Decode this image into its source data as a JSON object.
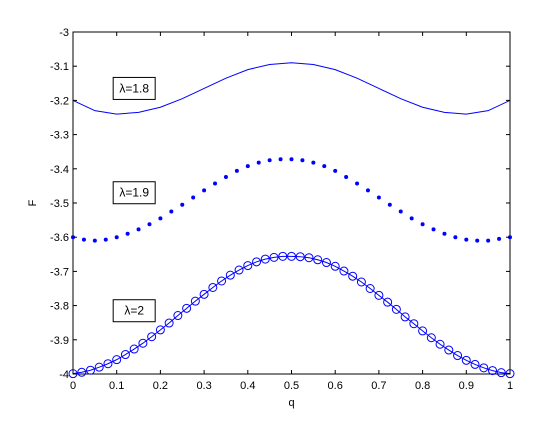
{
  "chart_data": {
    "type": "line",
    "title": "",
    "xlabel": "q",
    "ylabel": "F",
    "xlim": [
      0,
      1
    ],
    "ylim": [
      -4,
      -3
    ],
    "grid": false,
    "legend": "none",
    "x_ticks": [
      "0",
      "0.1",
      "0.2",
      "0.3",
      "0.4",
      "0.5",
      "0.6",
      "0.7",
      "0.8",
      "0.9",
      "1"
    ],
    "y_ticks": [
      "-3",
      "-3.1",
      "-3.2",
      "-3.3",
      "-3.4",
      "-3.5",
      "-3.6",
      "-3.7",
      "-3.8",
      "-3.9",
      "-4"
    ],
    "colors": {
      "series": "#0000ff",
      "axes": "#000000"
    },
    "annotations": [
      {
        "text": "λ=1.8",
        "x": 0.14,
        "y": -3.165
      },
      {
        "text": "λ=1.9",
        "x": 0.14,
        "y": -3.47
      },
      {
        "text": "λ=2",
        "x": 0.14,
        "y": -3.815
      }
    ],
    "series": [
      {
        "marker": "solid-line",
        "x": [
          0,
          0.05,
          0.1,
          0.15,
          0.2,
          0.25,
          0.3,
          0.35,
          0.4,
          0.45,
          0.5,
          0.55,
          0.6,
          0.65,
          0.7,
          0.75,
          0.8,
          0.85,
          0.9,
          0.95,
          1
        ],
        "y": [
          -3.2,
          -3.23,
          -3.24,
          -3.235,
          -3.22,
          -3.195,
          -3.165,
          -3.135,
          -3.11,
          -3.095,
          -3.09,
          -3.095,
          -3.11,
          -3.135,
          -3.165,
          -3.195,
          -3.22,
          -3.235,
          -3.24,
          -3.23,
          -3.2
        ]
      },
      {
        "marker": "dot",
        "x": [
          0,
          0.025,
          0.05,
          0.075,
          0.1,
          0.125,
          0.15,
          0.175,
          0.2,
          0.225,
          0.25,
          0.275,
          0.3,
          0.325,
          0.35,
          0.375,
          0.4,
          0.425,
          0.45,
          0.475,
          0.5,
          0.525,
          0.55,
          0.575,
          0.6,
          0.625,
          0.65,
          0.675,
          0.7,
          0.725,
          0.75,
          0.775,
          0.8,
          0.825,
          0.85,
          0.875,
          0.9,
          0.925,
          0.95,
          0.975,
          1
        ],
        "y": [
          -3.6,
          -3.607,
          -3.61,
          -3.607,
          -3.6,
          -3.59,
          -3.577,
          -3.562,
          -3.545,
          -3.525,
          -3.505,
          -3.484,
          -3.463,
          -3.443,
          -3.424,
          -3.406,
          -3.392,
          -3.382,
          -3.375,
          -3.372,
          -3.372,
          -3.375,
          -3.382,
          -3.392,
          -3.406,
          -3.424,
          -3.443,
          -3.463,
          -3.484,
          -3.505,
          -3.525,
          -3.545,
          -3.562,
          -3.577,
          -3.59,
          -3.6,
          -3.607,
          -3.61,
          -3.61,
          -3.605,
          -3.6
        ]
      },
      {
        "marker": "circle",
        "x": [
          0,
          0.02,
          0.04,
          0.06,
          0.08,
          0.1,
          0.12,
          0.14,
          0.16,
          0.18,
          0.2,
          0.22,
          0.24,
          0.26,
          0.28,
          0.3,
          0.32,
          0.34,
          0.36,
          0.38,
          0.4,
          0.42,
          0.44,
          0.46,
          0.48,
          0.5,
          0.52,
          0.54,
          0.56,
          0.58,
          0.6,
          0.62,
          0.64,
          0.66,
          0.68,
          0.7,
          0.72,
          0.74,
          0.76,
          0.78,
          0.8,
          0.82,
          0.84,
          0.86,
          0.88,
          0.9,
          0.92,
          0.94,
          0.96,
          0.98,
          1
        ],
        "y": [
          -3.999,
          -3.995,
          -3.989,
          -3.98,
          -3.97,
          -3.958,
          -3.943,
          -3.927,
          -3.91,
          -3.891,
          -3.871,
          -3.851,
          -3.829,
          -3.808,
          -3.787,
          -3.767,
          -3.747,
          -3.728,
          -3.711,
          -3.696,
          -3.683,
          -3.672,
          -3.664,
          -3.659,
          -3.656,
          -3.656,
          -3.657,
          -3.66,
          -3.666,
          -3.674,
          -3.685,
          -3.699,
          -3.714,
          -3.731,
          -3.75,
          -3.77,
          -3.79,
          -3.811,
          -3.833,
          -3.853,
          -3.874,
          -3.894,
          -3.913,
          -3.93,
          -3.946,
          -3.96,
          -3.972,
          -3.982,
          -3.99,
          -3.996,
          -3.999
        ]
      }
    ]
  }
}
